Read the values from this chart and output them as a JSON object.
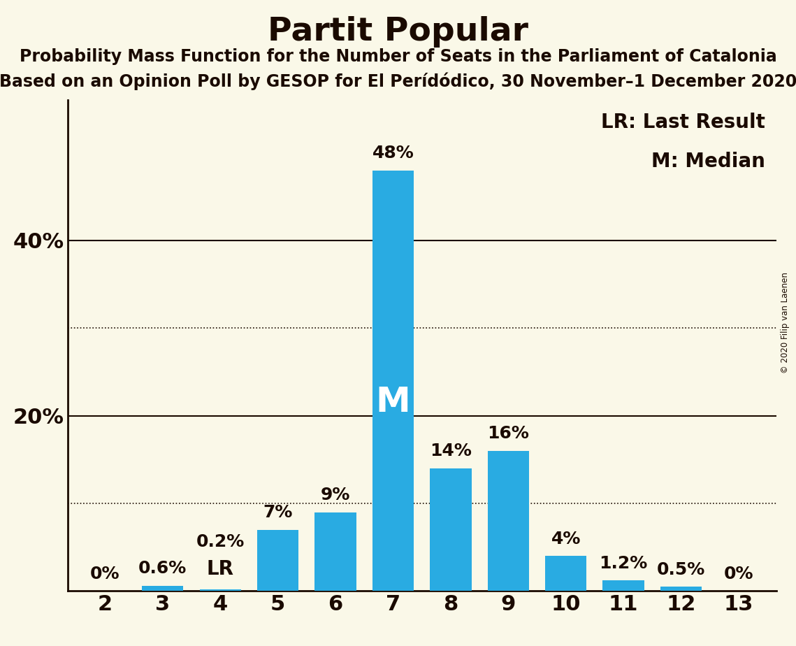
{
  "title": "Partit Popular",
  "subtitle1": "Probability Mass Function for the Number of Seats in the Parliament of Catalonia",
  "subtitle2": "Based on an Opinion Poll by GESOP for El Perídódico, 30 November–1 December 2020",
  "copyright": "© 2020 Filip van Laenen",
  "categories": [
    2,
    3,
    4,
    5,
    6,
    7,
    8,
    9,
    10,
    11,
    12,
    13
  ],
  "values": [
    0.0,
    0.6,
    0.2,
    7.0,
    9.0,
    48.0,
    14.0,
    16.0,
    4.0,
    1.2,
    0.5,
    0.0
  ],
  "labels": [
    "0%",
    "0.6%",
    "0.2%",
    "7%",
    "9%",
    "48%",
    "14%",
    "16%",
    "4%",
    "1.2%",
    "0.5%",
    "0%"
  ],
  "bar_color": "#29ABE2",
  "background_color": "#FAF8E8",
  "text_color": "#1A0A00",
  "median_bar": 7,
  "lr_bar": 4,
  "lr_label": "LR",
  "median_label": "M",
  "legend_lr": "LR: Last Result",
  "legend_m": "M: Median",
  "yticks": [
    20,
    40
  ],
  "ytick_labels": [
    "20%",
    "40%"
  ],
  "solid_grid_lines": [
    20.0,
    40.0
  ],
  "dotted_grid_lines": [
    10.0,
    30.0
  ],
  "ylim": [
    0,
    56
  ]
}
